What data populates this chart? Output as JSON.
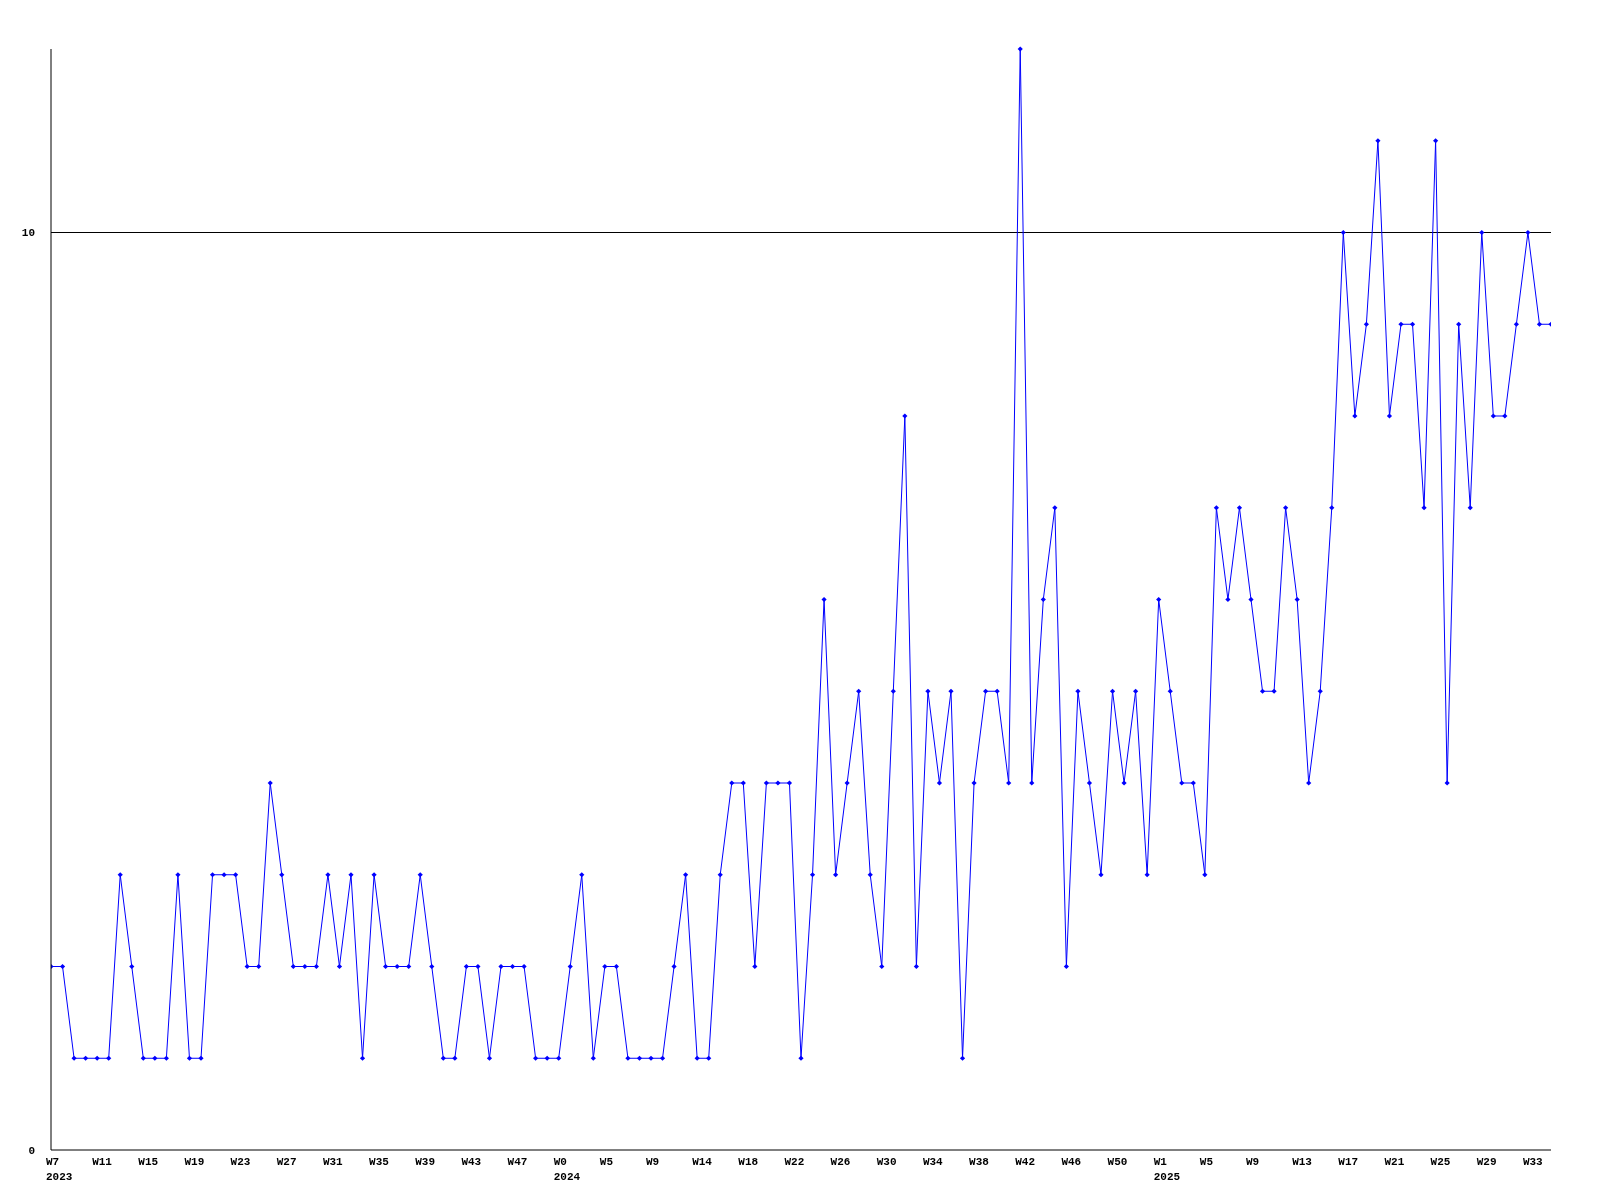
{
  "chart_data": {
    "type": "line",
    "categories": [
      "W7\n2023",
      null,
      null,
      null,
      "W11",
      null,
      null,
      null,
      "W15",
      null,
      null,
      null,
      "W19",
      null,
      null,
      null,
      "W23",
      null,
      null,
      null,
      "W27",
      null,
      null,
      null,
      "W31",
      null,
      null,
      null,
      "W35",
      null,
      null,
      null,
      "W39",
      null,
      null,
      null,
      "W43",
      null,
      null,
      null,
      "W47",
      null,
      null,
      null,
      "W0\n2024",
      null,
      null,
      null,
      "W5",
      null,
      null,
      null,
      "W9",
      null,
      null,
      null,
      "W14",
      null,
      null,
      null,
      "W18",
      null,
      null,
      null,
      "W22",
      null,
      null,
      null,
      "W26",
      null,
      null,
      null,
      "W30",
      null,
      null,
      null,
      "W34",
      null,
      null,
      null,
      "W38",
      null,
      null,
      null,
      "W42",
      null,
      null,
      null,
      "W46",
      null,
      null,
      null,
      "W50",
      null,
      null,
      null,
      "W1\n2025",
      null,
      null,
      null,
      "W5",
      null,
      null,
      null,
      "W9",
      null,
      null,
      null,
      "W13",
      null,
      null,
      null,
      "W17",
      null,
      null,
      null,
      "W21",
      null,
      null,
      null,
      "W25",
      null,
      null,
      null,
      "W29",
      null,
      null,
      null,
      "W33",
      null,
      null
    ],
    "series": [
      {
        "color": "#0000ff",
        "values": [
          2,
          2,
          1,
          1,
          1,
          1,
          3,
          2,
          1,
          1,
          1,
          3,
          1,
          1,
          3,
          3,
          3,
          2,
          2,
          4,
          3,
          2,
          2,
          2,
          3,
          2,
          3,
          1,
          3,
          2,
          2,
          2,
          3,
          2,
          1,
          1,
          2,
          2,
          1,
          2,
          2,
          2,
          1,
          1,
          1,
          2,
          3,
          1,
          2,
          2,
          1,
          1,
          1,
          1,
          2,
          3,
          1,
          1,
          3,
          4,
          4,
          2,
          4,
          4,
          4,
          1,
          3,
          6,
          3,
          4,
          5,
          3,
          2,
          5,
          8,
          2,
          5,
          4,
          5,
          1,
          4,
          5,
          5,
          4,
          12,
          4,
          6,
          7,
          2,
          5,
          4,
          3,
          5,
          4,
          5,
          3,
          6,
          5,
          4,
          4,
          3,
          7,
          6,
          7,
          6,
          5,
          5,
          7,
          6,
          4,
          5,
          7,
          10,
          8,
          9,
          11,
          8,
          9,
          9,
          7,
          11,
          4,
          9,
          7,
          10,
          8,
          8,
          9,
          10,
          9,
          9
        ]
      }
    ],
    "ylim": [
      0,
      12
    ],
    "yticks": [
      0,
      10
    ],
    "grid": "y",
    "marker": "diamond",
    "line_style": "solid"
  }
}
